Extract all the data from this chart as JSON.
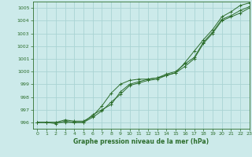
{
  "title": "Graphe pression niveau de la mer (hPa)",
  "bg_color": "#cceaea",
  "grid_color": "#aad4d4",
  "line_color": "#2d6e2d",
  "xlim": [
    -0.5,
    23
  ],
  "ylim": [
    995.5,
    1005.5
  ],
  "yticks": [
    996,
    997,
    998,
    999,
    1000,
    1001,
    1002,
    1003,
    1004,
    1005
  ],
  "xticks": [
    0,
    1,
    2,
    3,
    4,
    5,
    6,
    7,
    8,
    9,
    10,
    11,
    12,
    13,
    14,
    15,
    16,
    17,
    18,
    19,
    20,
    21,
    22,
    23
  ],
  "series": [
    [
      996.0,
      996.0,
      996.0,
      996.0,
      996.0,
      996.0,
      996.6,
      997.0,
      997.4,
      998.4,
      999.0,
      999.2,
      999.4,
      999.5,
      999.8,
      1000.0,
      1000.6,
      1001.1,
      1002.3,
      1003.1,
      1004.1,
      1004.4,
      1004.8,
      1005.1
    ],
    [
      996.0,
      996.0,
      995.9,
      996.1,
      996.0,
      996.0,
      996.4,
      996.9,
      997.6,
      998.2,
      998.9,
      999.1,
      999.3,
      999.4,
      999.7,
      999.9,
      1000.7,
      1001.6,
      1002.5,
      1003.3,
      1004.3,
      1004.7,
      1005.2,
      1005.4
    ],
    [
      996.0,
      996.0,
      996.0,
      996.2,
      996.1,
      996.1,
      996.5,
      997.3,
      998.3,
      999.0,
      999.3,
      999.4,
      999.4,
      999.5,
      999.7,
      999.9,
      1000.4,
      1001.0,
      1002.2,
      1003.0,
      1004.0,
      1004.3,
      1004.6,
      1005.0
    ]
  ]
}
